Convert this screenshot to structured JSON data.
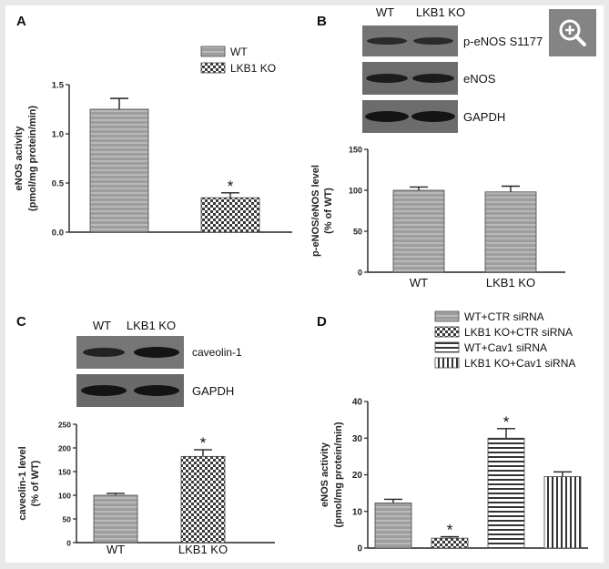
{
  "panels": {
    "A": {
      "label": "A"
    },
    "B": {
      "label": "B"
    },
    "C": {
      "label": "C"
    },
    "D": {
      "label": "D"
    }
  },
  "blots": {
    "B": {
      "lanes": [
        "WT",
        "LKB1 KO"
      ],
      "bands": [
        "p-eNOS S1177",
        "eNOS",
        "GAPDH"
      ]
    },
    "C": {
      "lanes": [
        "WT",
        "LKB1 KO"
      ],
      "bands": [
        "caveolin-1",
        "GAPDH"
      ]
    }
  },
  "colors": {
    "bar_fill": "#9a9a9a",
    "bar_stripe": "#b5b5b5",
    "axis": "#222222",
    "blot_bg": "#6e6e6e",
    "band": "#1c1c1c",
    "zoom_bg": "#7a7a7a"
  },
  "zoom_icon": "zoom-in-icon",
  "chart_data": [
    {
      "panel": "A",
      "type": "bar",
      "categories": [
        "WT",
        "LKB1 KO"
      ],
      "values": [
        1.25,
        0.35
      ],
      "errors": [
        0.11,
        0.05
      ],
      "patterns": [
        "hstripe",
        "check"
      ],
      "significance": [
        "",
        "*"
      ],
      "legend": [
        "WT",
        "LKB1 KO"
      ],
      "legend_position": "top-right",
      "ylabel_lines": [
        "eNOS activity",
        "(pmol/mg protein/min)"
      ],
      "ylim": [
        0,
        1.5
      ],
      "yticks": [
        0.0,
        0.5,
        1.0,
        1.5
      ],
      "ytick_labels": [
        "0.0",
        "0.5",
        "1.0",
        "1.5"
      ],
      "show_xticklabels": false
    },
    {
      "panel": "B",
      "type": "bar",
      "categories": [
        "WT",
        "LKB1 KO"
      ],
      "values": [
        100,
        98
      ],
      "errors": [
        4,
        7
      ],
      "patterns": [
        "hstripe",
        "hstripe"
      ],
      "significance": [
        "",
        ""
      ],
      "ylabel_lines": [
        "p-eNOS/eNOS level",
        "(% of WT)"
      ],
      "ylim": [
        0,
        150
      ],
      "yticks": [
        0,
        50,
        100,
        150
      ],
      "ytick_labels": [
        "0",
        "50",
        "100",
        "150"
      ],
      "show_xticklabels": true
    },
    {
      "panel": "C",
      "type": "bar",
      "categories": [
        "WT",
        "LKB1 KO"
      ],
      "values": [
        100,
        182
      ],
      "errors": [
        4,
        14
      ],
      "patterns": [
        "hstripe",
        "check"
      ],
      "significance": [
        "",
        "*"
      ],
      "ylabel_lines": [
        "caveolin-1 level",
        "(% of WT)"
      ],
      "ylim": [
        0,
        250
      ],
      "yticks": [
        0,
        50,
        100,
        150,
        200,
        250
      ],
      "ytick_labels": [
        "0",
        "50",
        "100",
        "150",
        "200",
        "250"
      ],
      "show_xticklabels": true
    },
    {
      "panel": "D",
      "type": "bar",
      "categories": [
        "WT+CTR siRNA",
        "LKB1 KO+CTR siRNA",
        "WT+Cav1 siRNA",
        "LKB1 KO+Cav1 siRNA"
      ],
      "values": [
        12.3,
        2.7,
        30.0,
        19.5
      ],
      "errors": [
        1.0,
        0.4,
        2.6,
        1.3
      ],
      "patterns": [
        "hstripe",
        "check",
        "hline",
        "vline"
      ],
      "significance": [
        "",
        "*",
        "*",
        ""
      ],
      "legend": [
        "WT+CTR siRNA",
        "LKB1 KO+CTR siRNA",
        "WT+Cav1 siRNA",
        "LKB1 KO+Cav1 siRNA"
      ],
      "legend_position": "top-right",
      "ylabel_lines": [
        "eNOS activity",
        "(pmol/mg protein/min)"
      ],
      "ylim": [
        0,
        40
      ],
      "yticks": [
        0,
        10,
        20,
        30,
        40
      ],
      "ytick_labels": [
        "0",
        "10",
        "20",
        "30",
        "40"
      ],
      "show_xticklabels": false
    }
  ]
}
